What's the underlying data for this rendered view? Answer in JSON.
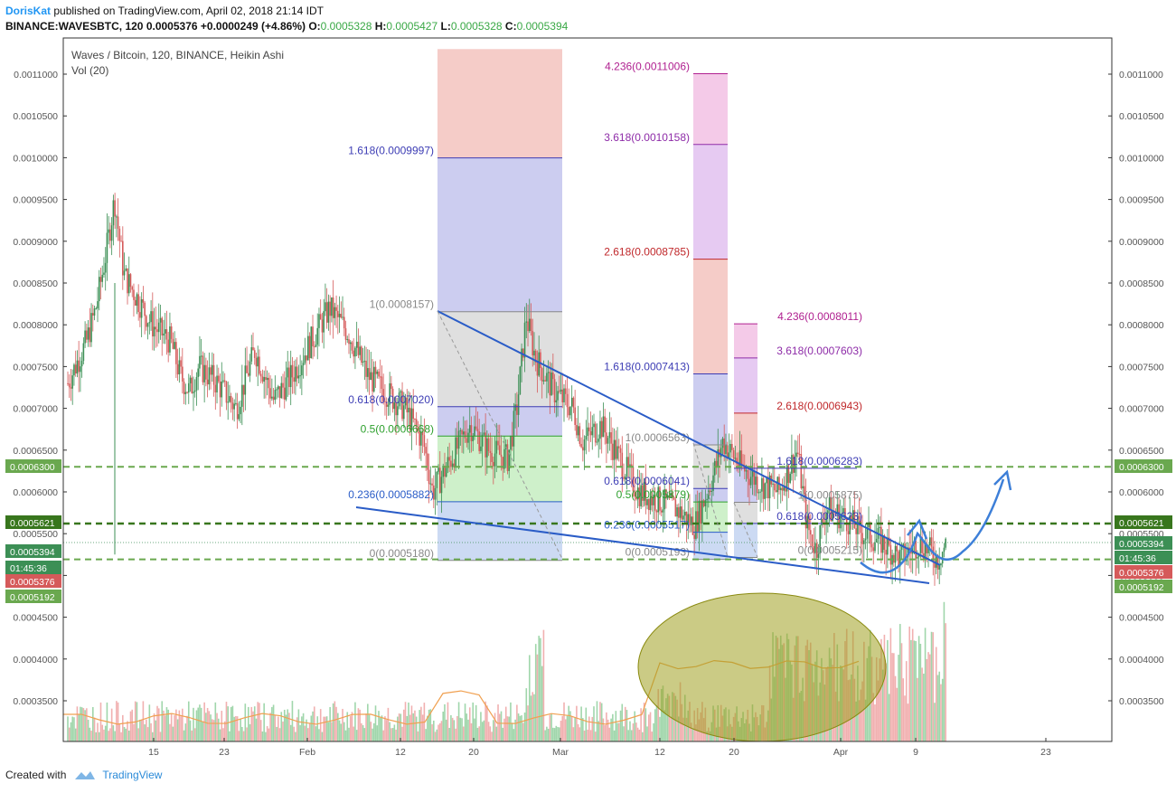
{
  "header": {
    "author": "DorisKat",
    "published": " published on TradingView.com, April 02, 2018 21:14 IDT",
    "symbol": "BINANCE:WAVESBTC, 120",
    "price": "0.0005376",
    "change": "+0.0000249 (+4.86%)",
    "o_label": "O:",
    "o": "0.0005328",
    "h_label": "H:",
    "h": "0.0005427",
    "l_label": "L:",
    "l": "0.0005328",
    "c_label": "C:",
    "c": "0.0005394"
  },
  "footer": {
    "created": "Created with",
    "brand": "TradingView"
  },
  "colors": {
    "up": "#3c8f55",
    "down": "#d55a5a",
    "trend": "#2a5cc7",
    "dashed": "#6aa84f",
    "dashed_dark": "#38761d",
    "arrow": "#3d7fd8"
  },
  "chart_data": {
    "type": "candlestick",
    "title": "Waves / Bitcoin, 120, BINANCE, Heikin Ashi",
    "subtitle": "Vol (20)",
    "y_ticks": [
      "0.0011000",
      "0.0010500",
      "0.0010000",
      "0.0009500",
      "0.0009000",
      "0.0008500",
      "0.0008000",
      "0.0007500",
      "0.0007000",
      "0.0006500",
      "0.0006000",
      "0.0005500",
      "0.0005000",
      "0.0004500",
      "0.0004000",
      "0.0003500"
    ],
    "x_ticks": [
      "15",
      "23",
      "Feb",
      "12",
      "20",
      "Mar",
      "12",
      "20",
      "Apr",
      "9",
      "23"
    ],
    "ylim": [
      0.0003,
      0.00113
    ],
    "path": [
      {
        "d": 0,
        "v": 0.00073
      },
      {
        "d": 2,
        "v": 0.00078
      },
      {
        "d": 3,
        "v": 0.00082
      },
      {
        "d": 4,
        "v": 0.00088
      },
      {
        "d": 5,
        "v": 0.00095
      },
      {
        "d": 6,
        "v": 0.00086
      },
      {
        "d": 7,
        "v": 0.00084
      },
      {
        "d": 9,
        "v": 0.0008
      },
      {
        "d": 11,
        "v": 0.00078
      },
      {
        "d": 12,
        "v": 0.00074
      },
      {
        "d": 13,
        "v": 0.00072
      },
      {
        "d": 14,
        "v": 0.00075
      },
      {
        "d": 16,
        "v": 0.00073
      },
      {
        "d": 18,
        "v": 0.0007
      },
      {
        "d": 20,
        "v": 0.00077
      },
      {
        "d": 22,
        "v": 0.00071
      },
      {
        "d": 24,
        "v": 0.00074
      },
      {
        "d": 26,
        "v": 0.00078
      },
      {
        "d": 28,
        "v": 0.00082
      },
      {
        "d": 30,
        "v": 0.00079
      },
      {
        "d": 32,
        "v": 0.00074
      },
      {
        "d": 34,
        "v": 0.00072
      },
      {
        "d": 36,
        "v": 0.0007
      },
      {
        "d": 38,
        "v": 0.00066
      },
      {
        "d": 39,
        "v": 0.0006
      },
      {
        "d": 41,
        "v": 0.00064
      },
      {
        "d": 43,
        "v": 0.00068
      },
      {
        "d": 45,
        "v": 0.00065
      },
      {
        "d": 47,
        "v": 0.00064
      },
      {
        "d": 48,
        "v": 0.0007
      },
      {
        "d": 49,
        "v": 0.00081
      },
      {
        "d": 50,
        "v": 0.00076
      },
      {
        "d": 52,
        "v": 0.00072
      },
      {
        "d": 54,
        "v": 0.0007
      },
      {
        "d": 55,
        "v": 0.00066
      },
      {
        "d": 57,
        "v": 0.00068
      },
      {
        "d": 59,
        "v": 0.00064
      },
      {
        "d": 61,
        "v": 0.0006
      },
      {
        "d": 63,
        "v": 0.00059
      },
      {
        "d": 65,
        "v": 0.00058
      },
      {
        "d": 67,
        "v": 0.00056
      },
      {
        "d": 69,
        "v": 0.00062
      },
      {
        "d": 70,
        "v": 0.00066
      },
      {
        "d": 72,
        "v": 0.00063
      },
      {
        "d": 74,
        "v": 0.00061
      },
      {
        "d": 76,
        "v": 0.0006
      },
      {
        "d": 78,
        "v": 0.00065
      },
      {
        "d": 79,
        "v": 0.00056
      },
      {
        "d": 80,
        "v": 0.00053
      },
      {
        "d": 81,
        "v": 0.00058
      },
      {
        "d": 83,
        "v": 0.00057
      },
      {
        "d": 85,
        "v": 0.00055
      },
      {
        "d": 87,
        "v": 0.00054
      },
      {
        "d": 89,
        "v": 0.00052
      },
      {
        "d": 91,
        "v": 0.00054
      },
      {
        "d": 93,
        "v": 0.00052
      },
      {
        "d": 94,
        "v": 0.00054
      }
    ],
    "fib_levels": [
      {
        "label": "1.618(0.0009997)",
        "value": 0.0009997,
        "color": "#3c3cb4",
        "x0": 50,
        "x1": 61
      },
      {
        "label": "1(0.0008157)",
        "value": 0.0008157,
        "color": "#888",
        "x0": 49,
        "x1": 61
      },
      {
        "label": "0.618(0.0007020)",
        "value": 0.000702,
        "color": "#3c3cb4",
        "x0": 49,
        "x1": 61
      },
      {
        "label": "0.5(0.0006668)",
        "value": 0.0006668,
        "color": "#2ea02e",
        "x0": 49,
        "x1": 61
      },
      {
        "label": "0.236(0.0005882)",
        "value": 0.0005882,
        "color": "#2a5cc7",
        "x0": 49,
        "x1": 61
      },
      {
        "label": "0(0.0005180)",
        "value": 0.000518,
        "color": "#888",
        "x0": 49,
        "x1": 61
      },
      {
        "label": "4.236(0.0011006)",
        "value": 0.0011006,
        "color": "#b02090",
        "x0": 76,
        "x1": 80
      },
      {
        "label": "3.618(0.0010158)",
        "value": 0.0010158,
        "color": "#8e2ca8",
        "x0": 76,
        "x1": 80
      },
      {
        "label": "2.618(0.0008785)",
        "value": 0.0008785,
        "color": "#c0282b",
        "x0": 76,
        "x1": 80
      },
      {
        "label": "1.618(0.0007413)",
        "value": 0.0007413,
        "color": "#3c3cb4",
        "x0": 76,
        "x1": 80
      },
      {
        "label": "1(0.0006563)",
        "value": 0.0006563,
        "color": "#888",
        "x0": 70,
        "x1": 80
      },
      {
        "label": "0.618(0.0006041)",
        "value": 0.0006041,
        "color": "#3c3cb4",
        "x0": 70,
        "x1": 80
      },
      {
        "label": "0.5(0.0005879)",
        "value": 0.0005879,
        "color": "#2ea02e",
        "x0": 70,
        "x1": 80
      },
      {
        "label": "0.236(0.0005517)",
        "value": 0.0005517,
        "color": "#2a5cc7",
        "x0": 70,
        "x1": 80
      },
      {
        "label": "0(0.0005193)",
        "value": 0.0005193,
        "color": "#888",
        "x0": 70,
        "x1": 80
      },
      {
        "label": "4.236(0.0008011)",
        "value": 0.0008011,
        "color": "#b02090",
        "x0": 81,
        "x1": 84
      },
      {
        "label": "3.618(0.0007603)",
        "value": 0.0007603,
        "color": "#8e2ca8",
        "x0": 81,
        "x1": 84
      },
      {
        "label": "2.618(0.0006943)",
        "value": 0.0006943,
        "color": "#c0282b",
        "x0": 81,
        "x1": 84
      },
      {
        "label": "1.618(0.0006283)",
        "value": 0.0006283,
        "color": "#3c3cb4",
        "x0": 81,
        "x1": 97
      },
      {
        "label": "1(0.0005875)",
        "value": 0.0005875,
        "color": "#888",
        "x0": 81,
        "x1": 84
      },
      {
        "label": "0.618(0.0005623)",
        "value": 0.0005623,
        "color": "#3c3cb4",
        "x0": 81,
        "x1": 97
      },
      {
        "label": "0(0.0005215)",
        "value": 0.0005215,
        "color": "#888",
        "x0": 81,
        "x1": 84
      }
    ],
    "price_tags": [
      {
        "label": "0.0006300",
        "value": 0.00063,
        "color": "#6aa84f"
      },
      {
        "label": "0.0005621",
        "value": 0.0005621,
        "color": "#38761d"
      },
      {
        "label": "0.0005394",
        "value": 0.0005394,
        "color": "#3c8f55"
      },
      {
        "label": "01:45:36",
        "value": 0.000522,
        "color": "#3c8f55"
      },
      {
        "label": "0.0005376",
        "value": 0.0005376,
        "color": "#d55a5a"
      },
      {
        "label": "0.0005192",
        "value": 0.0005192,
        "color": "#6aa84f"
      }
    ],
    "right_tags": [
      {
        "label": "0.0006300",
        "y": 0.00063,
        "color": "#6aa84f"
      },
      {
        "label": "0.0005621",
        "y": 0.0005621,
        "color": "#38761d"
      },
      {
        "label": "0.0005394",
        "y": 0.0005394,
        "color": "#3c8f55"
      },
      {
        "label": "01:45:36",
        "y": 0.000522,
        "color": "#3c8f55"
      },
      {
        "label": "0.0005376",
        "y": 0.000505,
        "color": "#d55a5a"
      },
      {
        "label": "0.0005192",
        "y": 0.000487,
        "color": "#6aa84f"
      }
    ]
  }
}
